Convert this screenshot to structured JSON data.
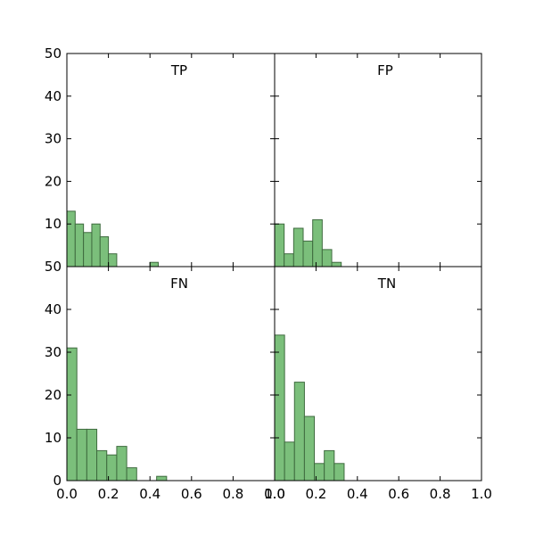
{
  "chart_data": [
    {
      "type": "bar",
      "title": "TP",
      "bin_width": 0.04,
      "bins": [
        0.0,
        0.04,
        0.08,
        0.12,
        0.16,
        0.2,
        0.24,
        0.28,
        0.32,
        0.36,
        0.4,
        0.44
      ],
      "values": [
        13,
        10,
        8,
        10,
        7,
        3,
        0,
        0,
        0,
        0,
        1,
        0
      ],
      "xlim": [
        0.0,
        1.0
      ],
      "ylim": [
        0,
        50
      ],
      "xticks": [
        "0.0",
        "0.2",
        "0.4",
        "0.6",
        "0.8",
        "1.0"
      ],
      "yticks": [
        "50",
        "40",
        "30",
        "20",
        "10"
      ],
      "color": "#7bbf7b"
    },
    {
      "type": "bar",
      "title": "FP",
      "bin_width": 0.046,
      "bins": [
        0.0,
        0.046,
        0.092,
        0.138,
        0.184,
        0.23,
        0.276
      ],
      "values": [
        10,
        3,
        9,
        6,
        11,
        4,
        1
      ],
      "xlim": [
        0.0,
        1.0
      ],
      "ylim": [
        0,
        50
      ],
      "color": "#7bbf7b"
    },
    {
      "type": "bar",
      "title": "FN",
      "bin_width": 0.048,
      "bins": [
        0.0,
        0.048,
        0.096,
        0.144,
        0.192,
        0.24,
        0.288,
        0.336,
        0.384,
        0.432
      ],
      "values": [
        31,
        12,
        12,
        7,
        6,
        8,
        3,
        0,
        0,
        1
      ],
      "xlim": [
        0.0,
        1.0
      ],
      "ylim": [
        0,
        50
      ],
      "xticks": [
        "0.0",
        "0.2",
        "0.4",
        "0.6",
        "0.8",
        "1.0"
      ],
      "yticks": [
        "50",
        "40",
        "30",
        "20",
        "10",
        "0"
      ],
      "color": "#7bbf7b"
    },
    {
      "type": "bar",
      "title": "TN",
      "bin_width": 0.048,
      "bins": [
        0.0,
        0.048,
        0.096,
        0.144,
        0.192,
        0.24,
        0.288
      ],
      "values": [
        34,
        9,
        23,
        15,
        4,
        7,
        4
      ],
      "xlim": [
        0.0,
        1.0
      ],
      "ylim": [
        0,
        50
      ],
      "xticks": [
        "0.0",
        "0.2",
        "0.4",
        "0.6",
        "0.8",
        "1.0"
      ],
      "color": "#7bbf7b"
    }
  ]
}
